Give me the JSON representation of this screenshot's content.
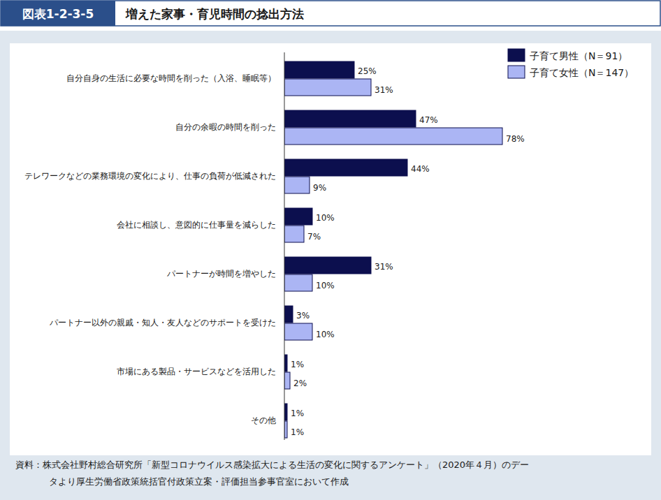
{
  "figure_number": "図表1-2-3-5",
  "chart_data": {
    "type": "bar",
    "title": "増えた家事・育児時間の捻出方法",
    "orientation": "horizontal",
    "categories": [
      "自分自身の生活に必要な時間を削った（入浴、睡眠等）",
      "自分の余暇の時間を削った",
      "テレワークなどの業務環境の変化により、仕事の負荷が低減された",
      "会社に相談し、意図的に仕事量を減らした",
      "パートナーが時間を増やした",
      "パートナー以外の親戚・知人・友人などのサポートを受けた",
      "市場にある製品・サービスなどを活用した",
      "その他"
    ],
    "series": [
      {
        "name": "子育て男性（N＝91）",
        "color": "#0c0f4e",
        "values": [
          25,
          47,
          44,
          10,
          31,
          3,
          1,
          1
        ],
        "value_labels": [
          "25%",
          "47%",
          "44%",
          "10%",
          "31%",
          "3%",
          "1%",
          "1%"
        ]
      },
      {
        "name": "子育て女性（N＝147）",
        "color": "#abb5f4",
        "values": [
          31,
          78,
          9,
          7,
          10,
          10,
          2,
          1
        ],
        "value_labels": [
          "31%",
          "78%",
          "9%",
          "7%",
          "10%",
          "10%",
          "2%",
          "1%"
        ]
      }
    ],
    "xlim": [
      0,
      100
    ],
    "data_labels": true,
    "tick_labels": false,
    "legend": "top-right"
  },
  "source": [
    "資料：株式会社野村総合研究所「新型コロナウイルス感染拡大による生活の変化に関するアンケート」（2020年４月）のデー",
    "タより厚生労働省政策統括官付政策立案・評価担当参事官室において作成"
  ]
}
